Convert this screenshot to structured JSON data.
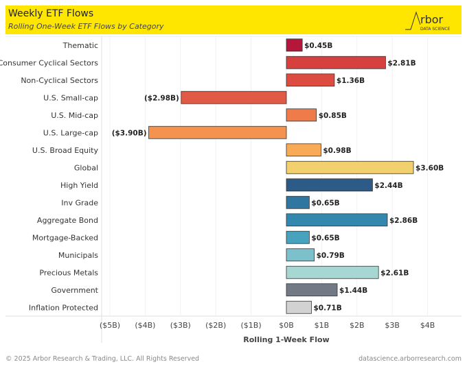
{
  "header": {
    "title": "Weekly ETF Flows",
    "subtitle": "Rolling One-Week ETF Flows by Category",
    "logo_text": "Arbor",
    "logo_sub": "DATA SCIENCE"
  },
  "chart_data": {
    "type": "bar",
    "orientation": "horizontal",
    "xlabel": "Rolling 1-Week Flow",
    "xlim": [
      -5.3,
      4.9
    ],
    "xticks": [
      -5,
      -4,
      -3,
      -2,
      -1,
      0,
      1,
      2,
      3,
      4
    ],
    "xtick_labels": [
      "($5B)",
      "($4B)",
      "($3B)",
      "($2B)",
      "($1B)",
      "$0B",
      "$1B",
      "$2B",
      "$3B",
      "$4B"
    ],
    "grid": "vertical",
    "categories": [
      "Thematic",
      "Consumer Cyclical Sectors",
      "Non-Cyclical Sectors",
      "U.S. Small-cap",
      "U.S. Mid-cap",
      "U.S. Large-cap",
      "U.S. Broad Equity",
      "Global",
      "High Yield",
      "Inv Grade",
      "Aggregate Bond",
      "Mortgage-Backed",
      "Municipals",
      "Precious Metals",
      "Government",
      "Inflation Protected"
    ],
    "values": [
      0.45,
      2.81,
      1.36,
      -2.98,
      0.85,
      -3.9,
      0.98,
      3.6,
      2.44,
      0.65,
      2.86,
      0.65,
      0.79,
      2.61,
      1.44,
      0.71
    ],
    "data_labels": [
      "$0.45B",
      "$2.81B",
      "$1.36B",
      "($2.98B)",
      "$0.85B",
      "($3.90B)",
      "$0.98B",
      "$3.60B",
      "$2.44B",
      "$0.65B",
      "$2.86B",
      "$0.65B",
      "$0.79B",
      "$2.61B",
      "$1.44B",
      "$0.71B"
    ],
    "colors": [
      "#b5173b",
      "#d6403f",
      "#dc4c40",
      "#e05a45",
      "#ef7a4a",
      "#f5924d",
      "#f8aa57",
      "#f2d06e",
      "#2d5b87",
      "#2f76a0",
      "#3488ad",
      "#46a2bd",
      "#7bc0ca",
      "#a6d7d3",
      "#737a86",
      "#d2d2d2"
    ]
  },
  "footer": {
    "copyright": "© 2025 Arbor Research & Trading, LLC. All Rights Reserved",
    "url": "datascience.arborresearch.com"
  }
}
